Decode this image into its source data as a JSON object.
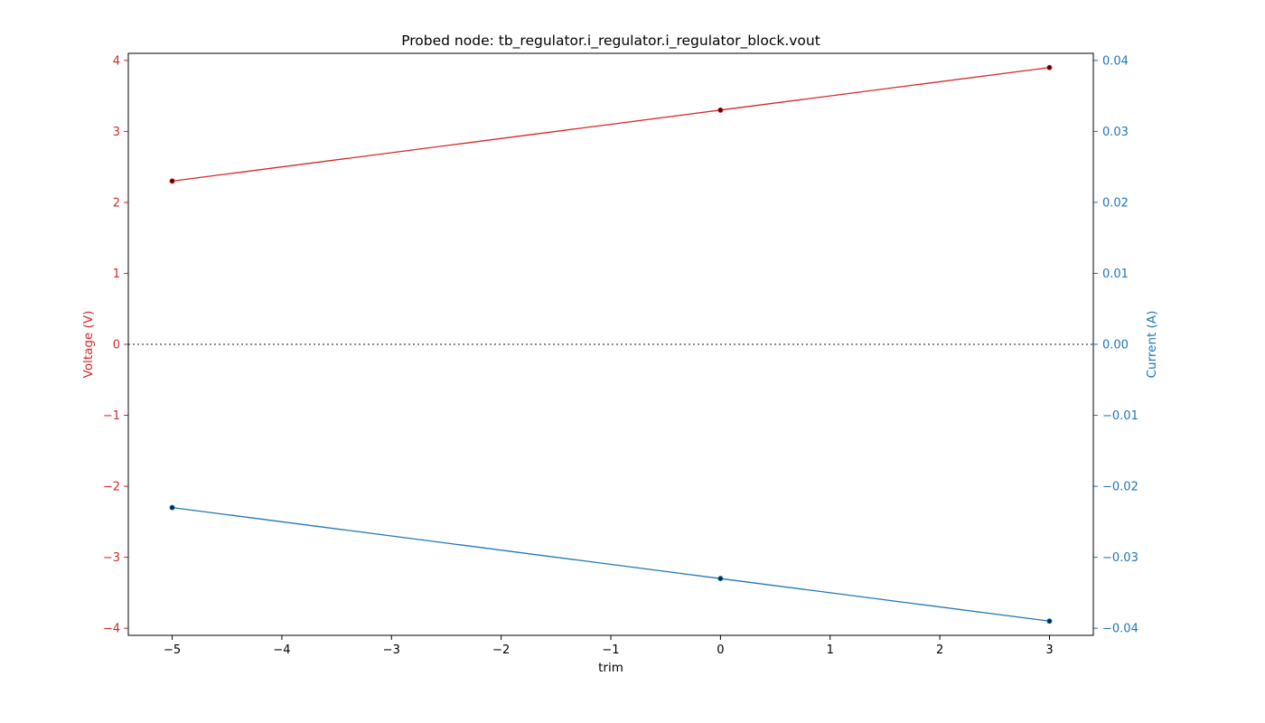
{
  "chart_data": {
    "type": "line",
    "title": "Probed node: tb_regulator.i_regulator.i_regulator_block.vout",
    "xlabel": "trim",
    "ylabel": "Voltage (V)",
    "y2label": "Current (A)",
    "xlim": [
      -5.4,
      3.4
    ],
    "ylim": [
      -4.1,
      4.1
    ],
    "y2lim": [
      -0.041,
      0.041
    ],
    "xticks": [
      -5,
      -4,
      -3,
      -2,
      -1,
      0,
      1,
      2,
      3
    ],
    "xtick_labels": [
      "−5",
      "−4",
      "−3",
      "−2",
      "−1",
      "0",
      "1",
      "2",
      "3"
    ],
    "yticks": [
      -4,
      -3,
      -2,
      -1,
      0,
      1,
      2,
      3,
      4
    ],
    "ytick_labels": [
      "−4",
      "−3",
      "−2",
      "−1",
      "0",
      "1",
      "2",
      "3",
      "4"
    ],
    "y2ticks": [
      -0.04,
      -0.03,
      -0.02,
      -0.01,
      0,
      0.01,
      0.02,
      0.03,
      0.04
    ],
    "y2tick_labels": [
      "−0.04",
      "−0.03",
      "−0.02",
      "−0.01",
      "0.00",
      "0.01",
      "0.02",
      "0.03",
      "0.04"
    ],
    "zero_line": {
      "value": 0,
      "style": "dotted",
      "color": "#666666"
    },
    "grid": false,
    "legend": "none",
    "series": [
      {
        "axis": "left",
        "color": "#d62728",
        "marker_color": "#5a0000",
        "x": [
          -5,
          0,
          3
        ],
        "y": [
          2.3,
          3.3,
          3.9
        ]
      },
      {
        "axis": "right",
        "color": "#1f77b4",
        "marker_color": "#002a4a",
        "x": [
          -5,
          0,
          3
        ],
        "y": [
          -0.023,
          -0.033,
          -0.039
        ]
      }
    ],
    "colors": {
      "left_axis": "#d62728",
      "right_axis": "#1f77b4",
      "text": "#000000"
    }
  }
}
